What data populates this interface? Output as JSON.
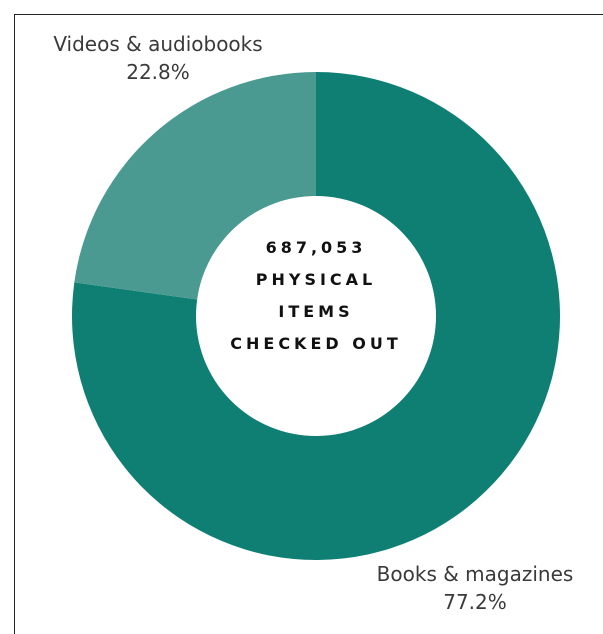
{
  "chart_data": {
    "type": "pie",
    "style": "donut",
    "center_label": {
      "value": "687,053",
      "lines": [
        "PHYSICAL",
        "ITEMS",
        "CHECKED OUT"
      ]
    },
    "slices": [
      {
        "name": "Books & magazines",
        "value": 77.2,
        "value_label": "77.2%",
        "color": "#0f7f74"
      },
      {
        "name": "Videos & audiobooks",
        "value": 22.8,
        "value_label": "22.8%",
        "color": "#4a9a91"
      }
    ]
  }
}
